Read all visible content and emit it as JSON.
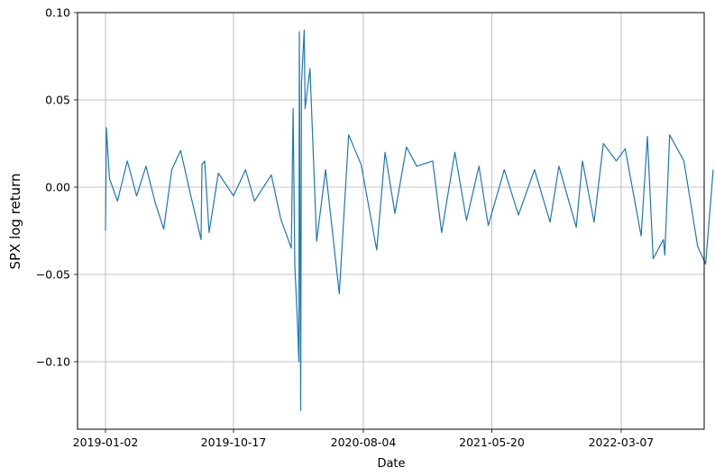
{
  "chart_data": {
    "type": "line",
    "title": "",
    "xlabel": "Date",
    "ylabel": "SPX log return",
    "x_range": [
      "2019-01-02",
      "2022-09-30"
    ],
    "ylim": [
      -0.138,
      0.101
    ],
    "x_ticks": [
      "2019-01-02",
      "2019-10-17",
      "2020-08-04",
      "2021-05-20",
      "2022-03-07"
    ],
    "y_ticks": [
      0.1,
      0.05,
      0.0,
      -0.05,
      -0.1
    ],
    "y_tick_labels": [
      "0.10",
      "0.05",
      "0.00",
      "−0.05",
      "−0.10"
    ],
    "grid": true,
    "line_color": "#1f77b4",
    "series": [
      {
        "name": "",
        "x": [
          "2019-01-02",
          "2019-01-04",
          "2019-01-11",
          "2019-01-29",
          "2019-02-20",
          "2019-03-13",
          "2019-04-03",
          "2019-04-24",
          "2019-05-13",
          "2019-05-31",
          "2019-06-20",
          "2019-07-12",
          "2019-08-05",
          "2019-08-07",
          "2019-08-13",
          "2019-08-23",
          "2019-09-13",
          "2019-10-17",
          "2019-11-13",
          "2019-12-03",
          "2020-01-10",
          "2020-01-31",
          "2020-02-24",
          "2020-02-28",
          "2020-03-03",
          "2020-03-09",
          "2020-03-12",
          "2020-03-13",
          "2020-03-16",
          "2020-03-18",
          "2020-03-24",
          "2020-03-26",
          "2020-04-06",
          "2020-04-21",
          "2020-05-11",
          "2020-06-11",
          "2020-07-02",
          "2020-07-30",
          "2020-09-03",
          "2020-09-22",
          "2020-10-14",
          "2020-11-09",
          "2020-12-02",
          "2021-01-07",
          "2021-01-27",
          "2021-02-26",
          "2021-03-24",
          "2021-04-21",
          "2021-05-12",
          "2021-06-17",
          "2021-07-19",
          "2021-08-24",
          "2021-09-28",
          "2021-10-18",
          "2021-11-26",
          "2021-12-10",
          "2022-01-05",
          "2022-01-26",
          "2022-02-24",
          "2022-03-16",
          "2022-04-21",
          "2022-05-05",
          "2022-05-18",
          "2022-06-10",
          "2022-06-13",
          "2022-06-24",
          "2022-07-26",
          "2022-08-26",
          "2022-09-13",
          "2022-09-30"
        ],
        "values": [
          -0.025,
          0.034,
          0.005,
          -0.008,
          0.015,
          -0.005,
          0.012,
          -0.009,
          -0.024,
          0.01,
          0.021,
          -0.004,
          -0.03,
          0.013,
          0.015,
          -0.026,
          0.008,
          -0.005,
          0.01,
          -0.008,
          0.007,
          -0.018,
          -0.035,
          0.045,
          -0.045,
          -0.079,
          -0.1,
          0.089,
          -0.128,
          0.06,
          0.09,
          0.045,
          0.068,
          -0.031,
          0.01,
          -0.061,
          0.03,
          0.013,
          -0.036,
          0.02,
          -0.015,
          0.023,
          0.012,
          0.015,
          -0.026,
          0.02,
          -0.019,
          0.012,
          -0.022,
          0.01,
          -0.016,
          0.01,
          -0.02,
          0.012,
          -0.023,
          0.015,
          -0.02,
          0.025,
          0.015,
          0.022,
          -0.028,
          0.029,
          -0.041,
          -0.03,
          -0.039,
          0.03,
          0.015,
          -0.034,
          -0.044,
          0.01
        ]
      }
    ]
  }
}
